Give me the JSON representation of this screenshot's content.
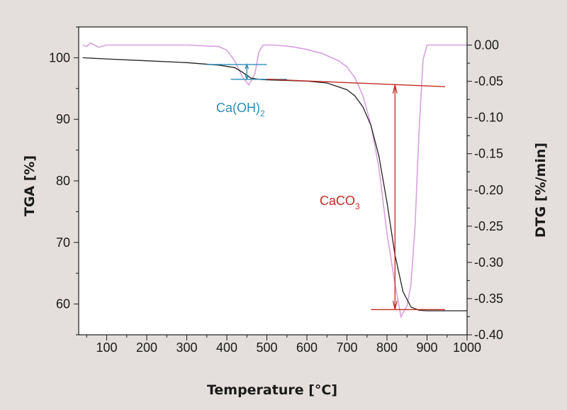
{
  "chart_data": {
    "type": "line",
    "xlabel": "Temperature [°C]",
    "ylabel_left": "TGA [%]",
    "ylabel_right": "DTG [%/min]",
    "xlim": [
      30,
      1000
    ],
    "ylim_left": [
      55,
      105
    ],
    "ylim_right": [
      -0.4,
      0.025
    ],
    "x_ticks": [
      100,
      200,
      300,
      400,
      500,
      600,
      700,
      800,
      900,
      1000
    ],
    "y_left_ticks": [
      60,
      70,
      80,
      90,
      100
    ],
    "y_right_ticks": [
      "0.00",
      "-0.05",
      "-0.10",
      "-0.15",
      "-0.20",
      "-0.25",
      "-0.30",
      "-0.35",
      "-0.40"
    ],
    "grid": false,
    "series": [
      {
        "axis": "left",
        "color": "#222222",
        "x": [
          40,
          100,
          200,
          300,
          380,
          420,
          440,
          460,
          480,
          500,
          550,
          600,
          650,
          700,
          720,
          740,
          760,
          780,
          800,
          820,
          840,
          860,
          880,
          900,
          950,
          1000
        ],
        "y": [
          100.0,
          99.8,
          99.5,
          99.2,
          98.8,
          98.4,
          97.6,
          96.7,
          96.5,
          96.4,
          96.3,
          96.2,
          95.9,
          94.8,
          93.8,
          92.0,
          89.0,
          84.0,
          76.5,
          68.0,
          62.0,
          59.5,
          59.0,
          58.9,
          58.9,
          58.9
        ]
      },
      {
        "axis": "right",
        "color": "#d7a1dd",
        "x": [
          40,
          50,
          60,
          80,
          100,
          200,
          300,
          380,
          400,
          420,
          440,
          455,
          470,
          480,
          490,
          520,
          560,
          600,
          640,
          680,
          700,
          720,
          740,
          760,
          780,
          800,
          820,
          835,
          850,
          860,
          870,
          880,
          890,
          900,
          950,
          1000
        ],
        "y": [
          0.0,
          -0.002,
          0.003,
          -0.003,
          0.0,
          0.0,
          0.0,
          -0.002,
          -0.007,
          -0.022,
          -0.045,
          -0.055,
          -0.04,
          -0.01,
          0.0,
          0.0,
          -0.002,
          -0.006,
          -0.012,
          -0.022,
          -0.03,
          -0.045,
          -0.07,
          -0.11,
          -0.17,
          -0.26,
          -0.33,
          -0.375,
          -0.36,
          -0.33,
          -0.25,
          -0.12,
          -0.02,
          0.0,
          0.0,
          0.0
        ]
      }
    ],
    "annotations": [
      {
        "text": "Ca(OH)",
        "sub": "2",
        "color": "#2a8db8"
      },
      {
        "text": "CaCO",
        "sub": "3",
        "color": "#c02b24"
      }
    ]
  }
}
